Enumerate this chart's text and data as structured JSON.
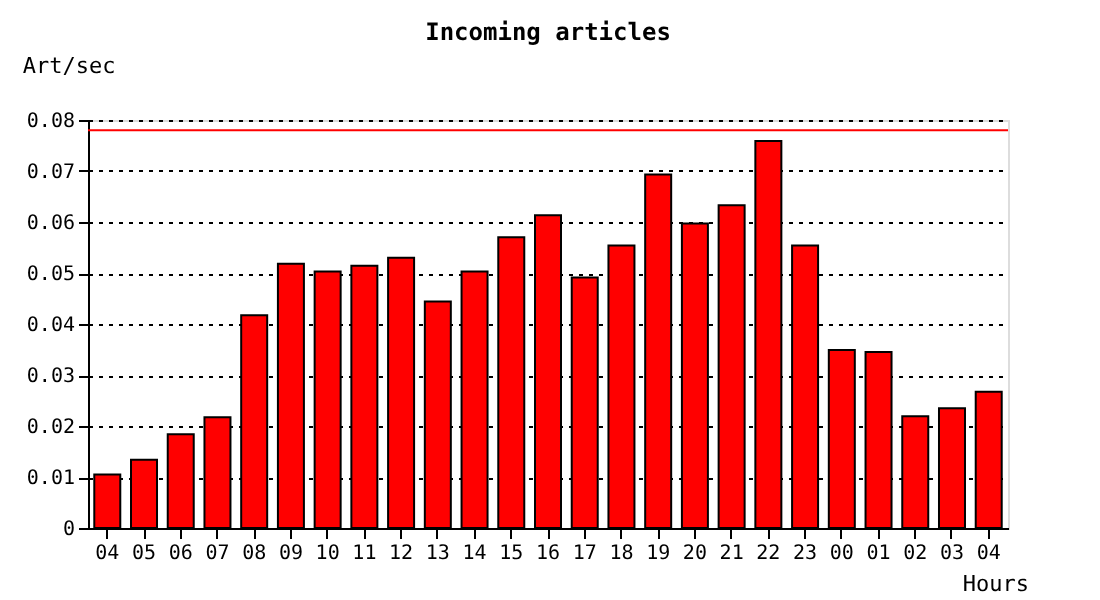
{
  "chart_data": {
    "type": "bar",
    "title": "Incoming articles",
    "ylabel": "Art/sec",
    "xlabel": "Hours",
    "categories": [
      "04",
      "05",
      "06",
      "07",
      "08",
      "09",
      "10",
      "11",
      "12",
      "13",
      "14",
      "15",
      "16",
      "17",
      "18",
      "19",
      "20",
      "21",
      "22",
      "23",
      "00",
      "01",
      "02",
      "03",
      "04"
    ],
    "values": [
      0.0105,
      0.0134,
      0.0184,
      0.0217,
      0.0417,
      0.0518,
      0.0503,
      0.0514,
      0.053,
      0.0444,
      0.0503,
      0.057,
      0.0613,
      0.0491,
      0.0554,
      0.0693,
      0.0597,
      0.0633,
      0.0759,
      0.0554,
      0.0349,
      0.0345,
      0.0219,
      0.0235,
      0.0267
    ],
    "color": "#ff0000",
    "ylim": [
      0,
      0.08
    ],
    "yticks": [
      0,
      0.01,
      0.02,
      0.03,
      0.04,
      0.05,
      0.06,
      0.07,
      0.08
    ],
    "grid": "y",
    "ref_lines": [
      {
        "axis": "y",
        "value": 0.078,
        "color": "#ff0000"
      }
    ]
  }
}
